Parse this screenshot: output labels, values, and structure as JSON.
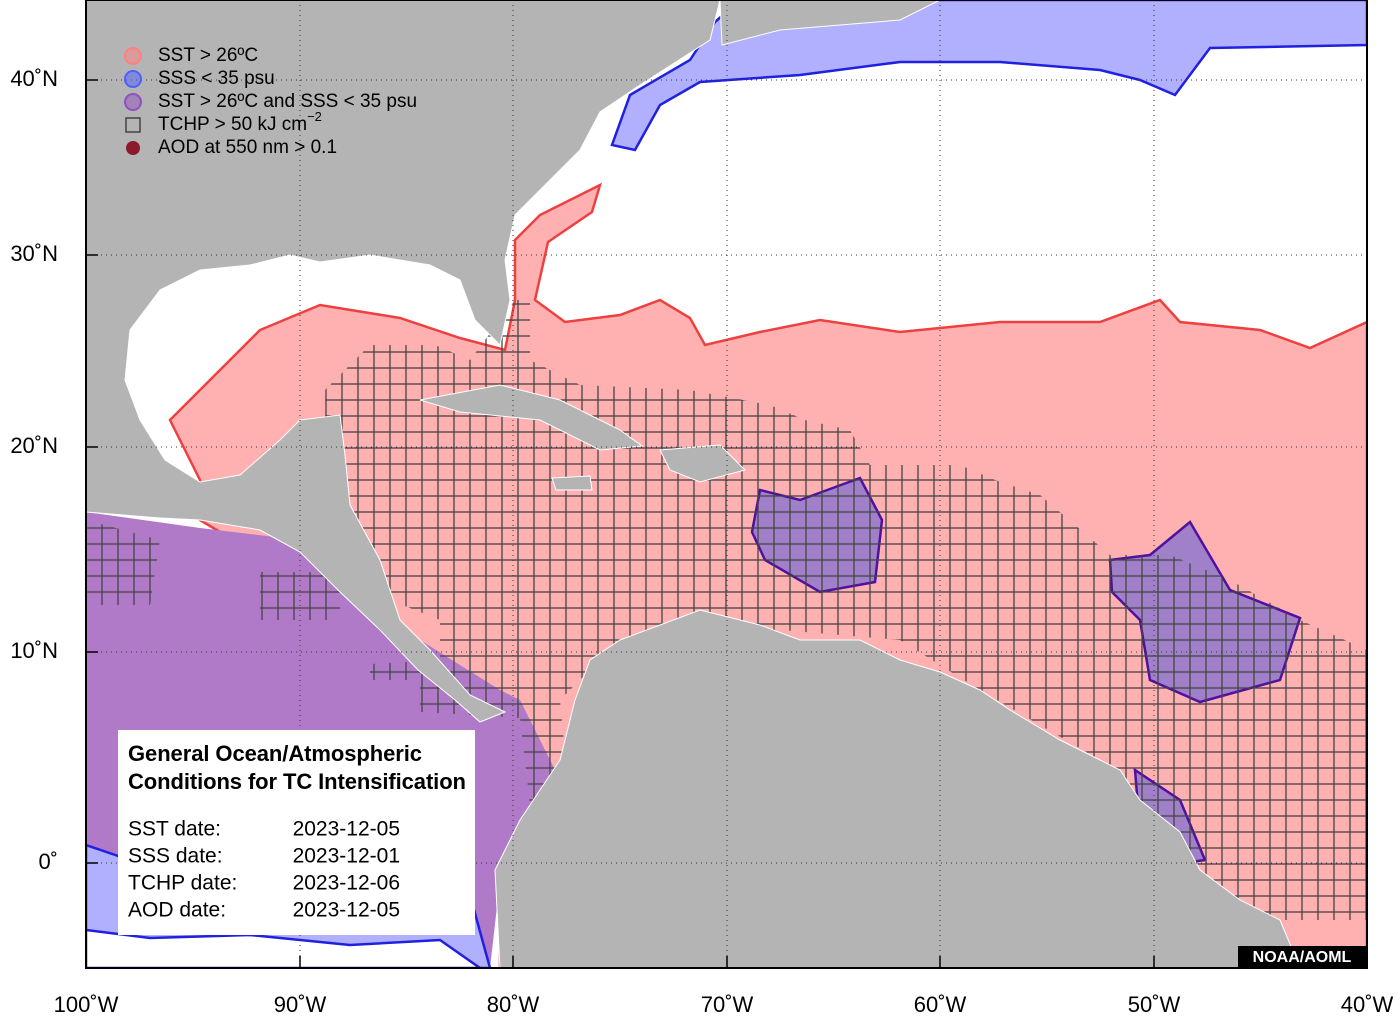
{
  "legend": [
    {
      "label": "SST > 26ºC",
      "color": "#ff8080"
    },
    {
      "label": "SSS < 35 psu",
      "color": "#5060ff"
    },
    {
      "label": "SST > 26ºC and SSS < 35 psu",
      "color": "#9050c0"
    },
    {
      "label": "TCHP > 50 kJ cm",
      "superscript": "−2"
    },
    {
      "label": "AOD at 550 nm > 0.1",
      "color": "#8b1a2a"
    }
  ],
  "axes": {
    "x_labels": [
      "100˚W",
      "90˚W",
      "80˚W",
      "70˚W",
      "60˚W",
      "50˚W",
      "40˚W"
    ],
    "y_labels": [
      "40˚N",
      "30˚N",
      "20˚N",
      "10˚N",
      "0˚"
    ]
  },
  "info_box": {
    "title_lines": [
      "General Ocean/Atmospheric",
      "Conditions for TC Intensification"
    ],
    "dates": [
      {
        "label": "SST date:",
        "value": "2023-12-05"
      },
      {
        "label": "SSS date:",
        "value": "2023-12-01"
      },
      {
        "label": "TCHP date:",
        "value": "2023-12-06"
      },
      {
        "label": "AOD date:",
        "value": "2023-12-05"
      }
    ]
  },
  "credit": "NOAA/AOML"
}
